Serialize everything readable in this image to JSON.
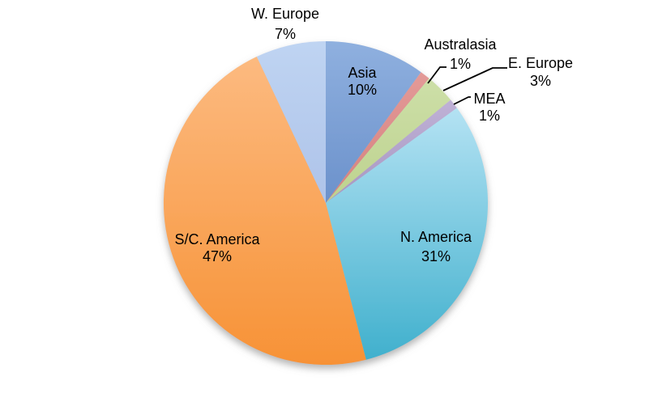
{
  "chart_data": {
    "type": "pie",
    "title": "",
    "start_angle_deg": 0,
    "direction": "clockwise",
    "background_color": "#ffffff",
    "leader_line_color": "#000000",
    "label_text_color": "#000000",
    "slices": [
      {
        "label": "Asia",
        "value": 10,
        "pct_label": "10%",
        "color_top": "#8FB0DF",
        "color_bottom": "#6B91CB",
        "label_placement": "inside"
      },
      {
        "label": "Australasia",
        "value": 1,
        "pct_label": "1%",
        "color_top": "#E39A98",
        "color_bottom": "#D5807E",
        "label_placement": "outside"
      },
      {
        "label": "E. Europe",
        "value": 3,
        "pct_label": "3%",
        "color_top": "#CDDFA8",
        "color_bottom": "#BDD28E",
        "label_placement": "outside"
      },
      {
        "label": "MEA",
        "value": 1,
        "pct_label": "1%",
        "color_top": "#BFB1D6",
        "color_bottom": "#A796C1",
        "label_placement": "outside"
      },
      {
        "label": "N. America",
        "value": 31,
        "pct_label": "31%",
        "color_top": "#B4E2F3",
        "color_bottom": "#40B0CD",
        "label_placement": "inside"
      },
      {
        "label": "S/C. America",
        "value": 47,
        "pct_label": "47%",
        "color_top": "#FCBA80",
        "color_bottom": "#F79236",
        "label_placement": "inside"
      },
      {
        "label": "W. Europe",
        "value": 7,
        "pct_label": "7%",
        "color_top": "#BFD4F2",
        "color_bottom": "#AEC3E9",
        "label_placement": "outside"
      }
    ]
  }
}
